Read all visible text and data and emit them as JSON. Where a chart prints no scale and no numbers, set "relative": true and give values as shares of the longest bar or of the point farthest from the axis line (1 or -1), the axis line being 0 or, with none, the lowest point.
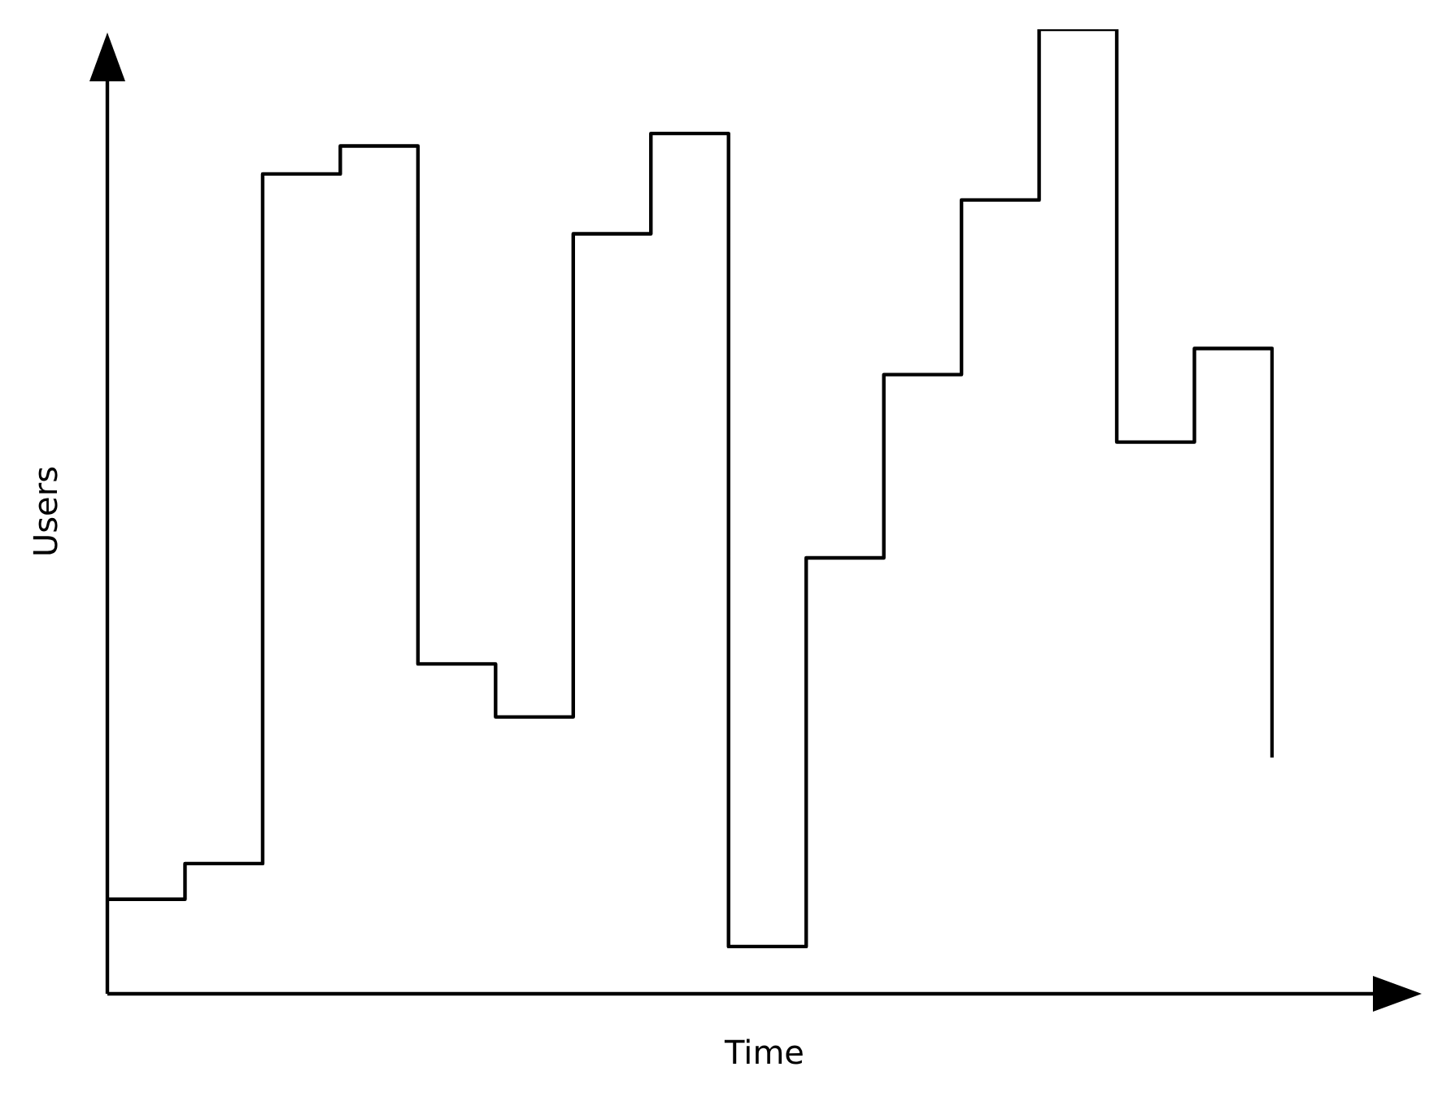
{
  "chart_data": {
    "type": "step",
    "relative": true,
    "xlabel": "Time",
    "ylabel": "Users",
    "tick_labels": false,
    "marker": "none",
    "line_style": "solid",
    "categories": [
      null,
      null,
      null,
      null,
      null,
      null,
      null,
      null,
      null,
      null,
      null,
      null,
      null,
      null,
      null,
      null
    ],
    "series": [
      {
        "color": "#000000",
        "values": [
          0.098,
          0.135,
          0.85,
          0.879,
          0.342,
          0.287,
          0.788,
          0.892,
          0.049,
          0.452,
          0.642,
          0.823,
          1,
          0.572,
          0.669,
          0.245
        ]
      }
    ]
  }
}
